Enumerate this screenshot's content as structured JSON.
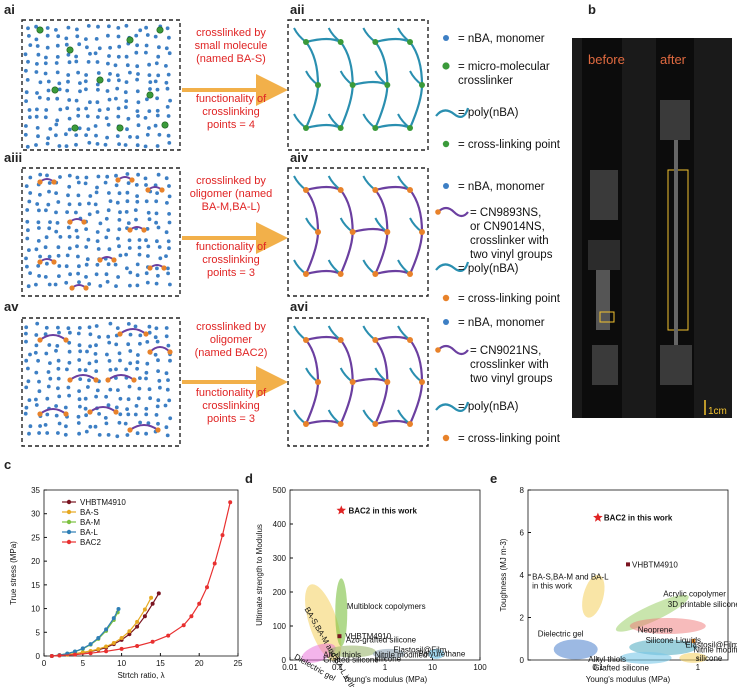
{
  "panels": {
    "ai": "ai",
    "aii": "aii",
    "aiii": "aiii",
    "aiv": "aiv",
    "av": "av",
    "avi": "avi",
    "b": "b",
    "c": "c",
    "d": "d",
    "e": "e"
  },
  "arrow_text": {
    "row1": [
      "crosslinked by",
      "small molecule",
      "(named BA-S)",
      "",
      "functionality of",
      "crosslinking",
      "points = 4"
    ],
    "row2": [
      "crosslinked by",
      "oligomer (named",
      "BA-M,BA-L)",
      "",
      "functionality of",
      "crosslinking",
      "points = 3"
    ],
    "row3": [
      "crosslinked by",
      "oligomer",
      "(named BAC2)",
      "",
      "functionality of",
      "crosslinking",
      "points = 3"
    ]
  },
  "legend": {
    "g1_monomer": "= nBA, monomer",
    "g1_crosslinker": [
      "= micro-molecular",
      "crosslinker"
    ],
    "g1_poly": "= poly(nBA)",
    "g1_point": "= cross-linking point",
    "g2_monomer": "= nBA, monomer",
    "g2_crosslinker": [
      "= CN9893NS,",
      "or CN9014NS,",
      "crosslinker with",
      "two vinyl groups"
    ],
    "g2_poly": "= poly(nBA)",
    "g2_point": "= cross-linking point",
    "g3_monomer": "= nBA, monomer",
    "g3_crosslinker": [
      "= CN9021NS,",
      "crosslinker with",
      "two vinyl groups"
    ],
    "g3_poly": "= poly(nBA)",
    "g3_point": "= cross-linking point"
  },
  "photo": {
    "before": "before",
    "after": "after",
    "scale": "1cm"
  },
  "colors": {
    "accent_red": "#e02424",
    "arrow": "#f2b04a",
    "monomer": "#3d7fc4",
    "crosslinker_green": "#3a9a3a",
    "crosslink_orange": "#e8822a",
    "polymer": "#2a8fb0",
    "oligomer": "#6b3fa0"
  },
  "chart_data": [
    {
      "type": "line",
      "panel": "c",
      "xlabel": "Strtch ratio, λ",
      "ylabel": "True stress (MPa)",
      "xlim": [
        0,
        25
      ],
      "ylim": [
        0,
        35
      ],
      "xticks": [
        0,
        5,
        10,
        15,
        20,
        25
      ],
      "yticks": [
        0,
        5,
        10,
        15,
        20,
        25,
        30,
        35
      ],
      "legend_position": "top-left",
      "series": [
        {
          "name": "VHBTM4910",
          "color": "#7a1420",
          "x": [
            1,
            2,
            3,
            4,
            5,
            6,
            7,
            8,
            9,
            10,
            11,
            12,
            13,
            14,
            14.8
          ],
          "y": [
            0,
            0.15,
            0.3,
            0.5,
            0.7,
            0.95,
            1.3,
            1.8,
            2.5,
            3.4,
            4.6,
            6.2,
            8.4,
            11,
            13.2
          ]
        },
        {
          "name": "BA-S",
          "color": "#e6a820",
          "x": [
            1,
            2,
            3,
            4,
            5,
            6,
            7,
            8,
            9,
            10,
            11,
            12,
            13,
            13.8
          ],
          "y": [
            0,
            0.15,
            0.3,
            0.5,
            0.75,
            1.05,
            1.45,
            2,
            2.75,
            3.8,
            5.2,
            7.2,
            9.8,
            12.3
          ]
        },
        {
          "name": "BA-M",
          "color": "#7cc040",
          "x": [
            1,
            2,
            3,
            4,
            5,
            6,
            7,
            8,
            9,
            9.5
          ],
          "y": [
            0,
            0.2,
            0.5,
            0.9,
            1.5,
            2.4,
            3.6,
            5.3,
            7.6,
            9.2
          ]
        },
        {
          "name": "BA-L",
          "color": "#2f7fb5",
          "x": [
            1,
            2,
            3,
            4,
            5,
            6,
            7,
            8,
            9,
            9.6
          ],
          "y": [
            0,
            0.2,
            0.5,
            0.95,
            1.6,
            2.5,
            3.8,
            5.6,
            8,
            9.9
          ]
        },
        {
          "name": "BAC2",
          "color": "#e83030",
          "x": [
            1,
            2,
            4,
            6,
            8,
            10,
            12,
            14,
            16,
            18,
            19,
            20,
            21,
            22,
            23,
            24
          ],
          "y": [
            0,
            0.1,
            0.3,
            0.6,
            1,
            1.5,
            2.1,
            3,
            4.3,
            6.5,
            8.4,
            11,
            14.5,
            19.5,
            25.5,
            32.4
          ]
        }
      ]
    },
    {
      "type": "scatter",
      "panel": "d",
      "xlabel": "Young's modulus (MPa)",
      "ylabel": "Ultimate strength to Modulus",
      "xscale": "log",
      "xlim": [
        0.01,
        100
      ],
      "ylim": [
        0,
        500
      ],
      "xticks": [
        "0.01",
        "0.1",
        "1",
        "10",
        "100"
      ],
      "yticks": [
        0,
        100,
        200,
        300,
        400,
        500
      ],
      "points": [
        {
          "name": "BAC2 in this work",
          "x": 0.12,
          "y": 440,
          "color": "#e02424"
        },
        {
          "name": "VHBTM 4910",
          "x": 0.11,
          "y": 70,
          "color": "#7a1420"
        }
      ],
      "regions": [
        "BA-S,BA-M and BA-L in this work",
        "Multiblock copolymers",
        "Azo-grafted silicone",
        "Alkyl thiols Grafted silicone",
        "Nitrile modified silicone",
        "Elastosil@Film",
        "Polyurethane",
        "Dielectric gel"
      ]
    },
    {
      "type": "scatter",
      "panel": "e",
      "xlabel": "Young's modulus (MPa)",
      "ylabel": "Toughness (MJ m-3)",
      "xscale": "log",
      "xlim": [
        0.02,
        2
      ],
      "ylim": [
        0,
        8
      ],
      "xticks": [
        "0.1",
        "1"
      ],
      "yticks": [
        0,
        2,
        4,
        6,
        8
      ],
      "points": [
        {
          "name": "BAC2 in this work",
          "x": 0.1,
          "y": 6.7,
          "color": "#e02424"
        },
        {
          "name": "VHBTM4910",
          "x": 0.2,
          "y": 4.5,
          "color": "#7a1420"
        }
      ],
      "regions": [
        "BA-S,BA-M and BA-L in this work",
        "Acrylic copolymer",
        "3D printable silicone",
        "Dielectric gel",
        "Silicone",
        "Liquids",
        "Neoprene",
        "Alkyl thiols Grafted silicone",
        "Nitrile modified silicone",
        "Elastosil@Film"
      ]
    }
  ],
  "plot_text": {
    "c_legend": [
      "VHBTM4910",
      "BA-S",
      "BA-M",
      "BA-L",
      "BAC2"
    ],
    "c_xlabel": "Strtch ratio, λ",
    "c_ylabel": "True stress (MPa)",
    "d_bac2": "BAC2 in this work",
    "d_vhb": "VHBTM4910",
    "d_multi": "Multiblock copolymers",
    "d_ba": "BA-S,BA-M and BA-L in this work",
    "d_azo": "Azo-grafted silicone",
    "d_alkyl": "Alkyl thiols",
    "d_graft": "Grafted silicone",
    "d_nitrile": "Nitrile modified",
    "d_nitrile2": "silicone",
    "d_elasto": "Elastosil@Film",
    "d_pu": "Polyurethane",
    "d_diel": "Dielectric gel",
    "d_xlabel": "Young's modulus (MPa)",
    "d_ylabel": "Ultimate strength to Modulus",
    "e_bac2": "BAC2 in this work",
    "e_vhb": "VHBTM4910",
    "e_ba": [
      "BA-S,BA-M and BA-L",
      "in this work"
    ],
    "e_acrylic": "Acrylic copolymer",
    "e_3d": "3D printable silicone",
    "e_diel": "Dielectric gel",
    "e_silicone": "Silicone",
    "e_liquids": "Liquids",
    "e_neop": "Neoprene",
    "e_alkyl": "Alkyl thiols",
    "e_graft": "Grafted silicone",
    "e_nitrile": "Nitrile modified",
    "e_nitrile2": "silicone",
    "e_elasto": "Elastosil@Film",
    "e_xlabel": "Young's modulus (MPa)",
    "e_ylabel": "Toughness (MJ m-3)"
  }
}
